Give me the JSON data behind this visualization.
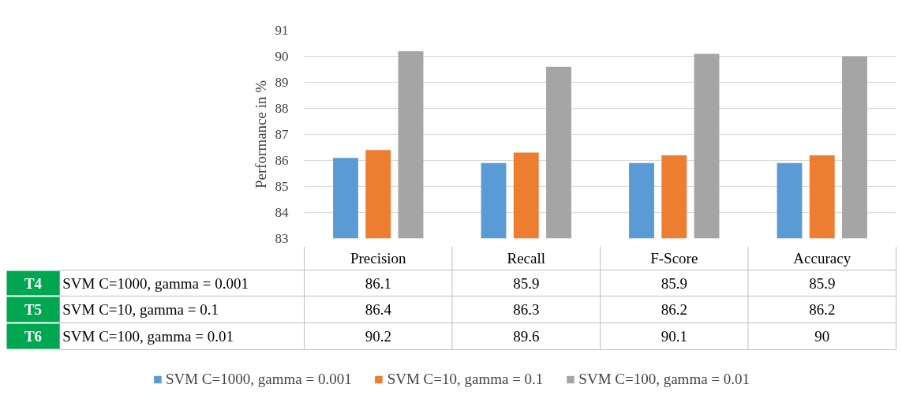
{
  "chart_data": {
    "type": "bar",
    "ylabel": "Performance in %",
    "categories": [
      "Precision",
      "Recall",
      "F-Score",
      "Accuracy"
    ],
    "series": [
      {
        "name": "SVM C=1000, gamma = 0.001",
        "color": "#5b9bd5",
        "values": [
          86.1,
          85.9,
          85.9,
          85.9
        ]
      },
      {
        "name": "SVM C=10, gamma = 0.1",
        "color": "#ed7d31",
        "values": [
          86.4,
          86.3,
          86.2,
          86.2
        ]
      },
      {
        "name": "SVM C=100, gamma = 0.01",
        "color": "#a5a5a5",
        "values": [
          90.2,
          89.6,
          90.1,
          90
        ]
      }
    ],
    "ylim": [
      83,
      91
    ],
    "yticks": [
      83,
      84,
      85,
      86,
      87,
      88,
      89,
      90,
      91
    ],
    "grid": "y",
    "legend": "bottom",
    "data_labels": true,
    "annotations": [
      "T4",
      "T5",
      "T6"
    ]
  }
}
